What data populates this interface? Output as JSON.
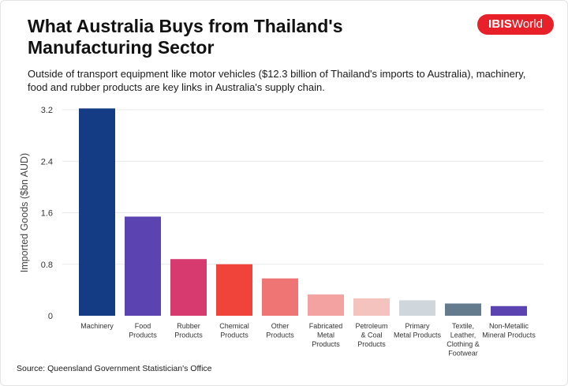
{
  "header": {
    "title": "What Australia Buys from Thailand's Manufacturing Sector",
    "subtitle": "Outside of transport equipment like motor vehicles ($12.3 billion of Thailand's imports to Australia), machinery, food and rubber products are key links in Australia's supply chain.",
    "logo_bold": "IBIS",
    "logo_rest": "World"
  },
  "footer": {
    "source": "Source: Queensland Government Statistician's Office"
  },
  "colors": {
    "logo_red": "#e8202a",
    "grid": "#e8e8e8"
  },
  "chart_data": {
    "type": "bar",
    "title": "",
    "xlabel": "",
    "ylabel": "Imported Goods ($bn AUD)",
    "ylim": [
      0,
      3.2
    ],
    "yticks": [
      "0",
      "0.8",
      "1.6",
      "2.4",
      "3.2"
    ],
    "grid": true,
    "categories": [
      "Machinery",
      "Food Products",
      "Rubber Products",
      "Chemical Products",
      "Other Products",
      "Fabricated Metal Products",
      "Petroleum & Coal Products",
      "Primary Metal Products",
      "Textile, Leather, Clothing & Footwear",
      "Non-Metallic Mineral Products"
    ],
    "category_lines": [
      [
        "Machinery"
      ],
      [
        "Food",
        "Products"
      ],
      [
        "Rubber",
        "Products"
      ],
      [
        "Chemical",
        "Products"
      ],
      [
        "Other",
        "Products"
      ],
      [
        "Fabricated",
        "Metal",
        "Products"
      ],
      [
        "Petroleum",
        "& Coal",
        "Products"
      ],
      [
        "Primary",
        "Metal Products"
      ],
      [
        "Textile,",
        "Leather,",
        "Clothing &",
        "Footwear"
      ],
      [
        "Non-Metallic",
        "Mineral Products"
      ]
    ],
    "values": [
      3.22,
      1.54,
      0.88,
      0.8,
      0.58,
      0.33,
      0.27,
      0.24,
      0.19,
      0.15
    ],
    "colors": [
      "#133c84",
      "#5b44b2",
      "#d63a6e",
      "#f0443b",
      "#ef7574",
      "#f3a1a1",
      "#f5c3bd",
      "#cfd6dc",
      "#637b8c",
      "#5b44b2"
    ]
  }
}
